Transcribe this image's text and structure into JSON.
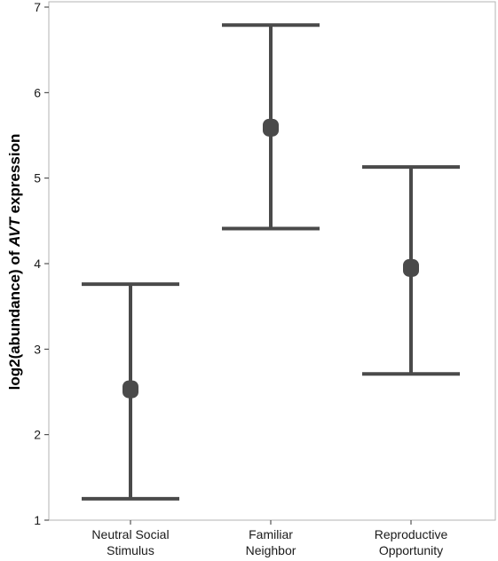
{
  "chart_data": {
    "type": "scatter",
    "subtype": "point-with-error-bars",
    "title": "",
    "xlabel": "",
    "ylabel_parts": [
      "log2(abundance) of ",
      "AVT",
      " expression"
    ],
    "categories": [
      [
        "Neutral Social",
        "Stimulus"
      ],
      [
        "Familiar",
        "Neighbor"
      ],
      [
        "Reproductive",
        "Opportunity"
      ]
    ],
    "values": [
      2.53,
      5.59,
      3.95
    ],
    "lower": [
      1.25,
      4.41,
      2.71
    ],
    "upper": [
      3.76,
      6.79,
      5.13
    ],
    "ylim": [
      1,
      7
    ],
    "yticks": [
      1,
      2,
      3,
      4,
      5,
      6,
      7
    ],
    "grid": false,
    "legend": "none",
    "colors": {
      "mark": "#4a4a4a",
      "frame": "#b3b3b3",
      "axis": "#333333"
    }
  }
}
